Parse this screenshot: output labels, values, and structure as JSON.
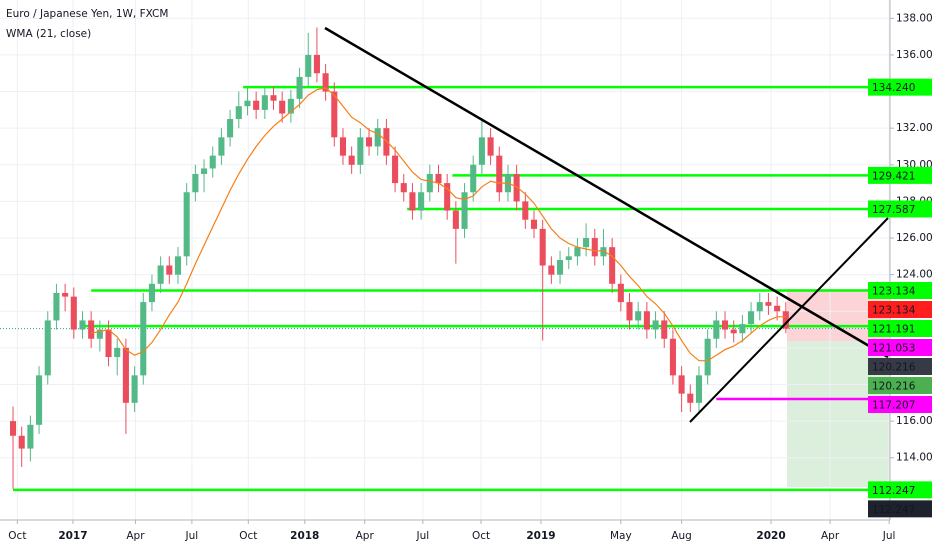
{
  "chart_data": {
    "type": "candlestick",
    "title": "Euro / Japanese Yen, 1W, FXCM",
    "up_color": "#53b987",
    "down_color": "#eb4d5c",
    "open": [
      116.0,
      115.2,
      114.5,
      115.8,
      118.5,
      121.5,
      123.0,
      122.8,
      121.0,
      121.5,
      120.5,
      121.0,
      119.5,
      120.0,
      117.0,
      118.5,
      122.5,
      123.5,
      124.5,
      124.0,
      125.0,
      128.5,
      129.5,
      129.8,
      130.5,
      131.5,
      132.5,
      133.2,
      133.5,
      133.0,
      133.8,
      133.5,
      132.8,
      133.6,
      134.8,
      136.0,
      135.0,
      134.0,
      131.5,
      130.5,
      130.0,
      131.5,
      131.0,
      132.0,
      130.5,
      129.0,
      128.5,
      127.5,
      128.5,
      129.5,
      129.0,
      127.5,
      126.5,
      128.5,
      130.0,
      131.5,
      130.5,
      128.5,
      129.5,
      128.0,
      127.0,
      126.5,
      124.5,
      124.0,
      124.8,
      125.0,
      125.5,
      126.0,
      125.0,
      125.5,
      123.5,
      122.5,
      121.5,
      122.0,
      121.0,
      121.5,
      120.5,
      118.5,
      117.5,
      117.0,
      118.5,
      120.5,
      121.5,
      121.0,
      120.8,
      121.3,
      122.0,
      122.5,
      122.3,
      122.0
    ],
    "high": [
      116.8,
      115.7,
      116.3,
      119.0,
      122.0,
      123.5,
      123.5,
      123.3,
      122.0,
      122.0,
      121.5,
      121.5,
      120.5,
      120.5,
      119.0,
      123.0,
      124.0,
      125.0,
      125.0,
      125.5,
      129.0,
      130.0,
      130.3,
      131.0,
      132.0,
      133.0,
      134.0,
      134.2,
      134.0,
      134.3,
      134.3,
      134.0,
      134.1,
      135.3,
      137.2,
      137.5,
      135.5,
      134.5,
      132.0,
      131.0,
      132.0,
      132.0,
      132.5,
      132.5,
      131.0,
      129.5,
      129.0,
      129.0,
      130.0,
      130.0,
      129.5,
      128.0,
      129.0,
      130.5,
      132.5,
      132.0,
      131.0,
      130.0,
      130.0,
      128.5,
      127.5,
      127.0,
      125.0,
      125.3,
      125.5,
      126.0,
      126.8,
      126.5,
      126.5,
      126.0,
      124.0,
      123.0,
      122.5,
      122.5,
      122.0,
      122.0,
      121.0,
      119.0,
      118.0,
      119.0,
      121.0,
      122.0,
      122.0,
      121.5,
      121.8,
      122.5,
      123.0,
      123.0,
      122.8,
      122.5
    ],
    "low": [
      112.3,
      113.5,
      113.8,
      115.3,
      118.0,
      121.0,
      122.0,
      120.5,
      120.5,
      120.0,
      119.8,
      119.0,
      118.5,
      115.3,
      116.5,
      118.0,
      122.0,
      123.0,
      123.5,
      123.5,
      124.5,
      128.0,
      128.5,
      129.3,
      130.0,
      131.0,
      132.0,
      132.7,
      132.5,
      132.5,
      133.0,
      132.3,
      132.3,
      133.1,
      134.3,
      134.5,
      133.5,
      131.0,
      130.0,
      129.5,
      129.5,
      130.5,
      130.5,
      130.0,
      128.5,
      128.0,
      127.0,
      127.0,
      128.0,
      128.5,
      127.0,
      124.6,
      126.0,
      128.0,
      129.5,
      130.0,
      128.0,
      128.0,
      127.5,
      126.5,
      126.0,
      120.4,
      123.5,
      123.5,
      124.3,
      124.5,
      125.0,
      124.5,
      124.5,
      123.0,
      122.0,
      121.0,
      121.0,
      120.5,
      120.5,
      120.0,
      118.0,
      116.5,
      116.5,
      116.5,
      118.0,
      120.0,
      120.5,
      120.3,
      120.3,
      120.8,
      121.5,
      121.8,
      121.5,
      120.8
    ],
    "close": [
      115.2,
      114.5,
      115.8,
      118.5,
      121.5,
      123.0,
      122.8,
      121.0,
      121.5,
      120.5,
      121.0,
      119.5,
      120.0,
      117.0,
      118.5,
      122.5,
      123.5,
      124.5,
      124.0,
      125.0,
      128.5,
      129.5,
      129.8,
      130.5,
      131.5,
      132.5,
      133.2,
      133.5,
      133.0,
      133.8,
      133.5,
      132.8,
      133.6,
      134.8,
      136.0,
      135.0,
      134.0,
      131.5,
      130.5,
      130.0,
      131.5,
      131.0,
      132.0,
      130.5,
      129.0,
      128.5,
      127.5,
      128.5,
      129.5,
      129.0,
      127.5,
      126.5,
      128.5,
      130.0,
      131.5,
      130.5,
      128.5,
      129.5,
      128.0,
      127.0,
      126.5,
      124.5,
      124.0,
      124.8,
      125.0,
      125.5,
      126.0,
      125.0,
      125.5,
      123.5,
      122.5,
      121.5,
      122.0,
      121.0,
      121.5,
      120.5,
      118.5,
      117.5,
      117.0,
      118.5,
      120.5,
      121.5,
      121.0,
      120.8,
      121.3,
      122.0,
      122.5,
      122.3,
      122.0,
      121.053
    ],
    "indicator": {
      "name": "WMA (21, close)",
      "color": "#f57f17",
      "values": [
        null,
        null,
        null,
        null,
        null,
        null,
        null,
        null,
        null,
        120.8,
        120.9,
        121.0,
        120.6,
        119.9,
        119.6,
        119.8,
        120.3,
        121.0,
        121.8,
        122.5,
        123.5,
        124.6,
        125.6,
        126.6,
        127.6,
        128.6,
        129.5,
        130.3,
        131.0,
        131.6,
        132.1,
        132.5,
        132.9,
        133.3,
        133.8,
        134.1,
        134.2,
        133.8,
        133.2,
        132.6,
        132.3,
        131.9,
        131.7,
        131.3,
        130.8,
        130.2,
        129.6,
        129.2,
        129.1,
        129.0,
        128.7,
        128.2,
        128.1,
        128.3,
        128.8,
        129.1,
        129.0,
        129.0,
        128.8,
        128.4,
        127.9,
        127.2,
        126.5,
        126.0,
        125.7,
        125.5,
        125.4,
        125.3,
        125.3,
        125.0,
        124.5,
        123.9,
        123.4,
        122.8,
        122.4,
        121.9,
        121.2,
        120.4,
        119.7,
        119.3,
        119.3,
        119.6,
        119.9,
        120.1,
        120.4,
        120.8,
        121.2,
        121.5,
        121.7,
        121.7
      ]
    },
    "ylim": [
      110.6,
      139.0
    ],
    "yticks": [
      {
        "value": 114,
        "label": "114.000"
      },
      {
        "value": 116,
        "label": "116.000"
      },
      {
        "value": 118,
        "label": "118.000"
      },
      {
        "value": 120,
        "label": "120.000"
      },
      {
        "value": 122,
        "label": "122.000"
      },
      {
        "value": 124,
        "label": "124.000"
      },
      {
        "value": 126,
        "label": "126.000"
      },
      {
        "value": 128,
        "label": "128.000"
      },
      {
        "value": 130,
        "label": "130.000"
      },
      {
        "value": 132,
        "label": "132.000"
      },
      {
        "value": 134,
        "label": "134.000"
      },
      {
        "value": 136,
        "label": "136.000"
      },
      {
        "value": 138,
        "label": "138.000"
      }
    ],
    "xlim": [
      -1.5,
      101
    ],
    "xticks": [
      {
        "value": 0.5,
        "label": "Oct"
      },
      {
        "value": 6.9,
        "label": "2017"
      },
      {
        "value": 14.1,
        "label": "Apr"
      },
      {
        "value": 20.6,
        "label": "Jul"
      },
      {
        "value": 27.1,
        "label": "Oct"
      },
      {
        "value": 33.6,
        "label": "2018"
      },
      {
        "value": 40.5,
        "label": "Apr"
      },
      {
        "value": 47.2,
        "label": "Jul"
      },
      {
        "value": 53.9,
        "label": "Oct"
      },
      {
        "value": 60.8,
        "label": "2019"
      },
      {
        "value": 70,
        "label": "May"
      },
      {
        "value": 77,
        "label": "Aug"
      },
      {
        "value": 87.3,
        "label": "2020"
      },
      {
        "value": 94.1,
        "label": "Apr"
      },
      {
        "value": 100.9,
        "label": "Jul"
      }
    ],
    "grid": true,
    "levels": [
      {
        "value": 134.24,
        "color": "#00ff00",
        "from": 26.5
      },
      {
        "value": 129.421,
        "color": "#00ff00",
        "from": 50.6
      },
      {
        "value": 127.587,
        "color": "#00ff00",
        "from": 45.4
      },
      {
        "value": 123.134,
        "color": "#00ff00",
        "from": 9
      },
      {
        "value": 121.191,
        "color": "#00ff00",
        "from": 7.7
      },
      {
        "value": 121.053,
        "color": "#26a69a",
        "from": -1.5,
        "dotted": true
      },
      {
        "value": 117.207,
        "color": "#ff00ff",
        "from": 81
      },
      {
        "value": 112.247,
        "color": "#00ff00",
        "from": 0
      }
    ],
    "price_tags": [
      {
        "value": 134.24,
        "label": "134.240",
        "color": "#00ff00",
        "text_color": "#131722"
      },
      {
        "value": 129.421,
        "label": "129.421",
        "color": "#00ff00",
        "text_color": "#131722"
      },
      {
        "value": 127.587,
        "label": "127.587",
        "color": "#00ff00",
        "text_color": "#131722"
      },
      {
        "value": 123.134,
        "label": "123.134",
        "color": "#00ff00",
        "text_color": "#131722"
      },
      {
        "value": 123.134,
        "label": "123.134",
        "color": "#ff1e1e",
        "text_color": "#ffffff"
      },
      {
        "value": 121.191,
        "label": "121.191",
        "color": "#00ff00",
        "text_color": "#131722"
      },
      {
        "value": 121.053,
        "label": "121.053",
        "color": "#ff00ff",
        "text_color": "#ffffff"
      },
      {
        "value": 120.216,
        "label": "120.216",
        "color": "#363a45",
        "text_color": "#ffffff"
      },
      {
        "value": 120.216,
        "label": "120.216",
        "color": "#4caf50",
        "text_color": "#ffffff"
      },
      {
        "value": 117.207,
        "label": "117.207",
        "color": "#ff00ff",
        "text_color": "#ffffff"
      },
      {
        "value": 112.247,
        "label": "112.247",
        "color": "#00ff00",
        "text_color": "#131722"
      },
      {
        "value": 112.247,
        "label": "112.247",
        "color": "#1e222d",
        "text_color": "#ffffff"
      }
    ]
  }
}
